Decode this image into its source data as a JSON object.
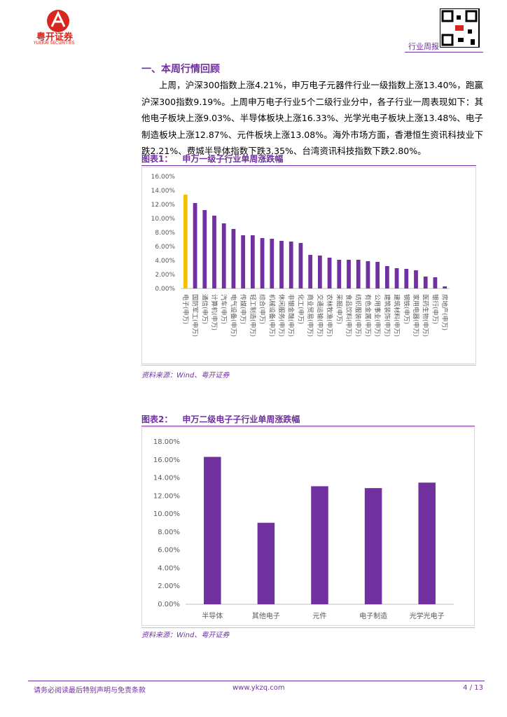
{
  "header": {
    "company": "粤开证券",
    "company_en": "YUEKAI SECURITIES",
    "report_type": "行业周报"
  },
  "section": {
    "title": "一、本周行情回顾",
    "paragraph": "上周，沪深300指数上涨4.21%，申万电子元器件行业一级指数上涨13.40%，跑赢沪深300指数9.19%。上周申万电子行业5个二级行业分中，各子行业一周表现如下：其他电子板块上涨9.03%、半导体板块上涨16.33%、光学光电子板块上涨13.48%、电子制造板块上涨12.87%、元件板块上涨13.08%。海外市场方面，香港恒生资讯科技业下跌2.21%、费城半导体指数下跌3.35%、台湾资讯科技指数下跌2.80%。"
  },
  "chart_data": [
    {
      "type": "bar",
      "label": "图表1：",
      "title": "申万一级子行业单周涨跌幅",
      "source": "资料来源：Wind、粤开证券",
      "categories": [
        "电子(申万)",
        "国防军工(申万)",
        "通信(申万)",
        "计算机(申万)",
        "汽车(申万)",
        "电气设备(申万)",
        "传媒(申万)",
        "轻工制造(申万)",
        "综合(申万)",
        "机械设备(申万)",
        "休闲服务(申万)",
        "非银金融(申万)",
        "化工(申万)",
        "商业贸易(申万)",
        "交通运输(申万)",
        "农林牧渔(申万)",
        "采掘(申万)",
        "食品饮料(申万)",
        "纺织服装(申万)",
        "有色金属(申万)",
        "公用事业(申万)",
        "建筑装饰(申万)",
        "建筑材料(申万)",
        "钢铁(申万)",
        "家用电器(申万)",
        "医药生物(申万)",
        "银行(申万)",
        "房地产(申万)"
      ],
      "values": [
        13.4,
        12.2,
        11.2,
        10.4,
        9.3,
        8.5,
        7.6,
        7.6,
        7.2,
        7.1,
        6.8,
        6.7,
        6.5,
        4.8,
        4.7,
        4.4,
        4.1,
        4.1,
        4.1,
        3.9,
        3.8,
        3.2,
        2.9,
        2.8,
        2.6,
        1.7,
        1.6,
        0.3
      ],
      "colors": [
        "#f5c000",
        "#7030a0",
        "#7030a0",
        "#7030a0",
        "#7030a0",
        "#7030a0",
        "#7030a0",
        "#7030a0",
        "#7030a0",
        "#7030a0",
        "#7030a0",
        "#7030a0",
        "#7030a0",
        "#7030a0",
        "#7030a0",
        "#7030a0",
        "#7030a0",
        "#7030a0",
        "#7030a0",
        "#7030a0",
        "#7030a0",
        "#7030a0",
        "#7030a0",
        "#7030a0",
        "#7030a0",
        "#7030a0",
        "#7030a0",
        "#7030a0"
      ],
      "ylim": [
        0,
        16
      ],
      "yticks": [
        {
          "value": 0,
          "label": "0.00%"
        },
        {
          "value": 2,
          "label": "2.00%"
        },
        {
          "value": 4,
          "label": "4.00%"
        },
        {
          "value": 6,
          "label": "6.00%"
        },
        {
          "value": 8,
          "label": "8.00%"
        },
        {
          "value": 10,
          "label": "10.00%"
        },
        {
          "value": 12,
          "label": "12.00%"
        },
        {
          "value": 14,
          "label": "14.00%"
        },
        {
          "value": 16,
          "label": "16.00%"
        }
      ],
      "grid": false
    },
    {
      "type": "bar",
      "label": "图表2：",
      "title": "申万二级电子子行业单周涨跌幅",
      "source": "资料来源：Wind、粤开证券",
      "categories": [
        "半导体",
        "其他电子",
        "元件",
        "电子制造",
        "光学光电子"
      ],
      "values": [
        16.33,
        9.03,
        13.08,
        12.87,
        13.48
      ],
      "colors": [
        "#7030a0",
        "#7030a0",
        "#7030a0",
        "#7030a0",
        "#7030a0"
      ],
      "ylim": [
        0,
        18
      ],
      "yticks": [
        {
          "value": 0,
          "label": "0.00%"
        },
        {
          "value": 2,
          "label": "2.00%"
        },
        {
          "value": 4,
          "label": "4.00%"
        },
        {
          "value": 6,
          "label": "6.00%"
        },
        {
          "value": 8,
          "label": "8.00%"
        },
        {
          "value": 10,
          "label": "10.00%"
        },
        {
          "value": 12,
          "label": "12.00%"
        },
        {
          "value": 14,
          "label": "14.00%"
        },
        {
          "value": 16,
          "label": "16.00%"
        },
        {
          "value": 18,
          "label": "18.00%"
        }
      ],
      "grid": false
    }
  ],
  "footer": {
    "disclaimer": "请务必阅读最后特别声明与免责条款",
    "website": "www.ykzq.com",
    "page": "4 / 13"
  }
}
